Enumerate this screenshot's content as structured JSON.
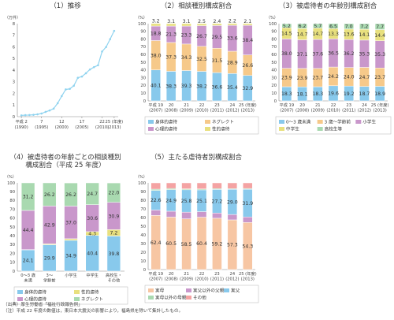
{
  "colors": {
    "physical": "#88c9ec",
    "neglect": "#f6c98a",
    "psychological": "#c997cb",
    "sexual": "#e8e07e",
    "age0_3": "#88c9ec",
    "age3_pre": "#f6c98a",
    "elementary": "#c997cb",
    "junior": "#e8e07e",
    "high": "#a9d9b0",
    "mother": "#f7c6a3",
    "father": "#88c9ec",
    "stepfather": "#c997cb",
    "stepmother": "#a9d9b0",
    "other": "#f4a3a3",
    "line": "#8fd3ef"
  },
  "notes": {
    "source": "（出典）厚生労働省「福祉行政報告例」",
    "note": "（注）平成 22 年度の数値は，東日本大震災の影響により，福島県を除いて集計したもの。"
  },
  "chart_data": [
    {
      "id": "trend",
      "type": "line",
      "title": "（1）推移",
      "ylabel": "（万件）",
      "ylim": [
        0,
        8
      ],
      "yticks": [
        0,
        1,
        2,
        3,
        4,
        5,
        6,
        7,
        8
      ],
      "x_ticks": [
        {
          "x": 2,
          "label": "平成 2",
          "sub": "(1990)"
        },
        {
          "x": 7,
          "label": "7",
          "sub": "(1995)"
        },
        {
          "x": 12,
          "label": "12",
          "sub": "(2000)"
        },
        {
          "x": 17,
          "label": "17",
          "sub": "(2005)"
        },
        {
          "x": 22,
          "label": "22",
          "sub": "(2010)"
        },
        {
          "x": 25,
          "label": "25 (年度)",
          "sub": "(2013)"
        }
      ],
      "x": [
        2,
        3,
        4,
        5,
        6,
        7,
        8,
        9,
        10,
        11,
        12,
        13,
        14,
        15,
        16,
        17,
        18,
        19,
        20,
        21,
        22,
        23,
        24,
        25
      ],
      "values": [
        0.11,
        0.13,
        0.14,
        0.16,
        0.2,
        0.27,
        0.41,
        0.53,
        0.69,
        1.16,
        1.77,
        2.34,
        2.39,
        2.66,
        3.34,
        3.45,
        3.73,
        4.06,
        4.26,
        4.42,
        5.6,
        5.99,
        6.67,
        7.38
      ]
    },
    {
      "id": "types",
      "type": "bar",
      "stacked": true,
      "title": "（2）相談種別構成割合",
      "ylabel": "（%）",
      "ylim": [
        0,
        100
      ],
      "yticks": [
        0,
        10,
        20,
        30,
        40,
        50,
        60,
        70,
        80,
        90,
        100
      ],
      "categories": [
        "平成 19",
        "20",
        "21",
        "22",
        "23",
        "24",
        "25 (年度)"
      ],
      "subcategories": [
        "(2007)",
        "(2008)",
        "(2009)",
        "(2010)",
        "(2011)",
        "(2012)",
        "(2013)"
      ],
      "series": [
        {
          "name": "身体的虐待",
          "color_key": "physical",
          "values": [
            40.1,
            38.3,
            39.3,
            38.2,
            36.6,
            35.4,
            32.9
          ]
        },
        {
          "name": "ネグレクト",
          "color_key": "neglect",
          "values": [
            38.0,
            37.3,
            34.3,
            32.5,
            31.5,
            28.9,
            26.6
          ]
        },
        {
          "name": "心理的虐待",
          "color_key": "psychological",
          "values": [
            18.8,
            21.3,
            23.3,
            26.7,
            29.5,
            33.6,
            38.4
          ]
        },
        {
          "name": "性的虐待",
          "color_key": "sexual",
          "values": [
            3.2,
            3.1,
            3.1,
            2.5,
            2.4,
            2.2,
            2.1
          ]
        }
      ],
      "legend_cols": 2
    },
    {
      "id": "ages",
      "type": "bar",
      "stacked": true,
      "title": "（3）被虐待者の年齢別構成割合",
      "ylabel": "（%）",
      "ylim": [
        0,
        100
      ],
      "yticks": [
        0,
        10,
        20,
        30,
        40,
        50,
        60,
        70,
        80,
        90,
        100
      ],
      "categories": [
        "平成 19",
        "20",
        "21",
        "22",
        "23",
        "24",
        "25 (年度)"
      ],
      "subcategories": [
        "(2007)",
        "(2008)",
        "(2009)",
        "(2010)",
        "(2011)",
        "(2012)",
        "(2013)"
      ],
      "series": [
        {
          "name": "0～3 歳未満",
          "color_key": "age0_3",
          "values": [
            18.3,
            18.1,
            18.3,
            19.6,
            19.2,
            18.7,
            18.9
          ]
        },
        {
          "name": "3 歳～学齢前",
          "color_key": "age3_pre",
          "values": [
            23.9,
            23.9,
            23.7,
            24.2,
            24.0,
            24.7,
            23.7
          ]
        },
        {
          "name": "小学生",
          "color_key": "elementary",
          "values": [
            38.0,
            37.1,
            37.6,
            36.5,
            36.2,
            35.3,
            35.3
          ]
        },
        {
          "name": "中学生",
          "color_key": "junior",
          "values": [
            14.5,
            14.7,
            14.7,
            13.3,
            13.6,
            14.1,
            14.4
          ]
        },
        {
          "name": "高校生等",
          "color_key": "high",
          "values": [
            5.2,
            6.2,
            5.7,
            6.5,
            7.0,
            7.2,
            7.7
          ]
        }
      ],
      "legend_cols": 3
    },
    {
      "id": "age_by_type",
      "type": "bar",
      "stacked": true,
      "title": "（4）被虐待者の年齢ごとの相談種別",
      "title2": "構成割合（平成 25 年度）",
      "ylabel": "（%）",
      "ylim": [
        0,
        100
      ],
      "yticks": [
        0,
        10,
        20,
        30,
        40,
        50,
        60,
        70,
        80,
        90,
        100
      ],
      "categories": [
        "0～3 歳",
        "3～",
        "小学生",
        "中学生",
        "高校生・"
      ],
      "subcategories": [
        "未満",
        "学齢前",
        "",
        "",
        "その他"
      ],
      "series": [
        {
          "name": "身体的虐待",
          "color_key": "physical",
          "values": [
            24.1,
            29.9,
            34.9,
            40.4,
            39.8
          ]
        },
        {
          "name": "性的虐待",
          "color_key": "sexual",
          "values": [
            0.3,
            1.0,
            1.8,
            4.3,
            7.2
          ]
        },
        {
          "name": "心理的虐待",
          "color_key": "psychological",
          "values": [
            44.4,
            42.9,
            37.0,
            30.6,
            30.9
          ]
        },
        {
          "name": "ネグレクト",
          "color_key": "high",
          "values": [
            31.2,
            26.2,
            26.2,
            24.7,
            22.0
          ]
        }
      ],
      "legend_cols": 2
    },
    {
      "id": "perpetrators",
      "type": "bar",
      "stacked": true,
      "title": "（5）主たる虐待者別構成割合",
      "ylabel": "（%）",
      "ylim": [
        0,
        100
      ],
      "yticks": [
        0,
        10,
        20,
        30,
        40,
        50,
        60,
        70,
        80,
        90,
        100
      ],
      "categories": [
        "平成 19",
        "20",
        "21",
        "22",
        "23",
        "24",
        "25 (年度)"
      ],
      "subcategories": [
        "(2007)",
        "(2008)",
        "(2009)",
        "(2010)",
        "(2011)",
        "(2012)",
        "(2013)"
      ],
      "series": [
        {
          "name": "実母",
          "color_key": "mother",
          "values": [
            62.4,
            60.5,
            58.5,
            60.4,
            59.2,
            57.3,
            54.3
          ]
        },
        {
          "name": "実父以外の父親",
          "color_key": "stepfather",
          "values": [
            6.3,
            6.8,
            7.7,
            6.4,
            6.0,
            6.2,
            6.4
          ]
        },
        {
          "name": "実父",
          "color_key": "father",
          "values": [
            22.6,
            24.9,
            25.8,
            25.1,
            27.2,
            29.0,
            31.9
          ]
        },
        {
          "name": "実母以外の母親",
          "color_key": "stepmother",
          "values": [
            1.4,
            1.3,
            1.1,
            1.1,
            1.0,
            0.8,
            0.9
          ]
        },
        {
          "name": "その他",
          "color_key": "other",
          "values": [
            7.3,
            6.5,
            6.9,
            7.0,
            6.6,
            6.7,
            6.5
          ]
        }
      ],
      "labels_for": [
        "実母",
        "実父"
      ],
      "legend_cols": 3
    }
  ]
}
